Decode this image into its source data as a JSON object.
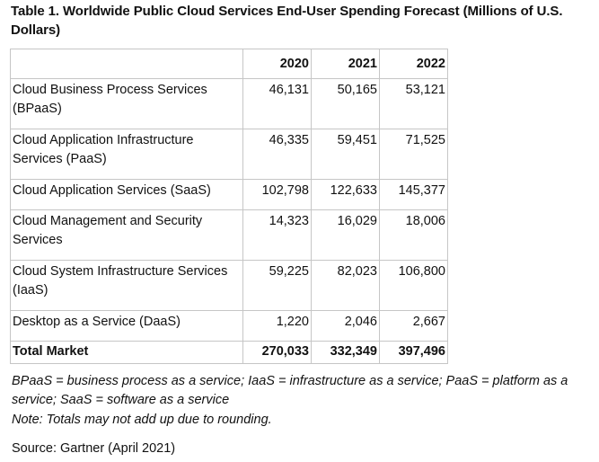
{
  "title": "Table 1. Worldwide Public Cloud Services End-User Spending Forecast (Millions of U.S. Dollars)",
  "table": {
    "headers": [
      "",
      "2020",
      "2021",
      "2022"
    ],
    "rows": [
      {
        "label": "Cloud Business Process Services (BPaaS)",
        "values": [
          "46,131",
          "50,165",
          "53,121"
        ]
      },
      {
        "label": "Cloud Application Infrastructure Services (PaaS)",
        "values": [
          "46,335",
          "59,451",
          "71,525"
        ]
      },
      {
        "label": "Cloud Application Services (SaaS)",
        "values": [
          "102,798",
          "122,633",
          "145,377"
        ]
      },
      {
        "label": "Cloud Management and Security Services",
        "values": [
          "14,323",
          "16,029",
          "18,006"
        ]
      },
      {
        "label": "Cloud System Infrastructure Services (IaaS)",
        "values": [
          "59,225",
          "82,023",
          "106,800"
        ]
      },
      {
        "label": "Desktop as a Service (DaaS)",
        "values": [
          "1,220",
          "2,046",
          "2,667"
        ]
      }
    ],
    "total": {
      "label": "Total Market",
      "values": [
        "270,033",
        "332,349",
        "397,496"
      ]
    }
  },
  "footnotes": {
    "abbreviations": "BPaaS = business process as a service; IaaS = infrastructure as a service; PaaS = platform as a service; SaaS = software as a service",
    "note": "Note: Totals may not add up due to rounding.",
    "source": "Source: Gartner (April 2021)"
  }
}
